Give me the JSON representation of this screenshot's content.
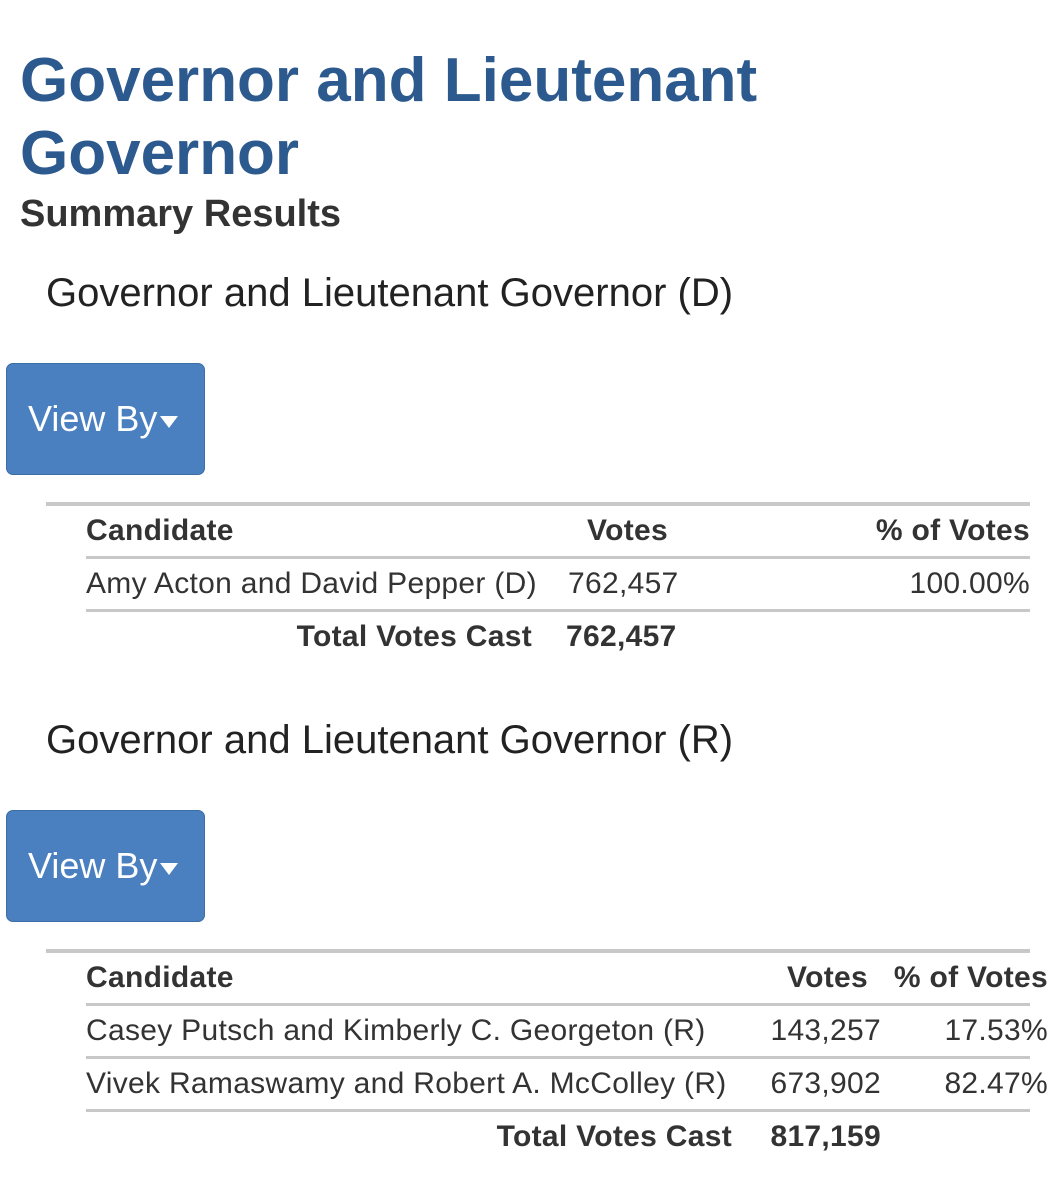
{
  "page": {
    "title": "Governor and Lieutenant Governor",
    "subtitle": "Summary Results"
  },
  "view_by_label": "View By",
  "races": [
    {
      "heading": "Governor and Lieutenant Governor (D)",
      "columns": {
        "candidate": "Candidate",
        "votes": "Votes",
        "percent": "% of Votes"
      },
      "rows": [
        {
          "candidate": "Amy Acton and David Pepper (D)",
          "votes": "762,457",
          "percent": "100.00%"
        }
      ],
      "total_label": "Total Votes Cast",
      "total_votes": "762,457"
    },
    {
      "heading": "Governor and Lieutenant Governor (R)",
      "columns": {
        "candidate": "Candidate",
        "votes": "Votes",
        "percent": "% of Votes"
      },
      "rows": [
        {
          "candidate": "Casey Putsch and Kimberly C. Georgeton (R)",
          "votes": "143,257",
          "percent": "17.53%"
        },
        {
          "candidate": "Vivek Ramaswamy and Robert A. McColley (R)",
          "votes": "673,902",
          "percent": "82.47%"
        }
      ],
      "total_label": "Total Votes Cast",
      "total_votes": "817,159"
    }
  ],
  "colors": {
    "title": "#2c5a8e",
    "button": "#4a7fc0",
    "rule": "#c8c8c8"
  }
}
